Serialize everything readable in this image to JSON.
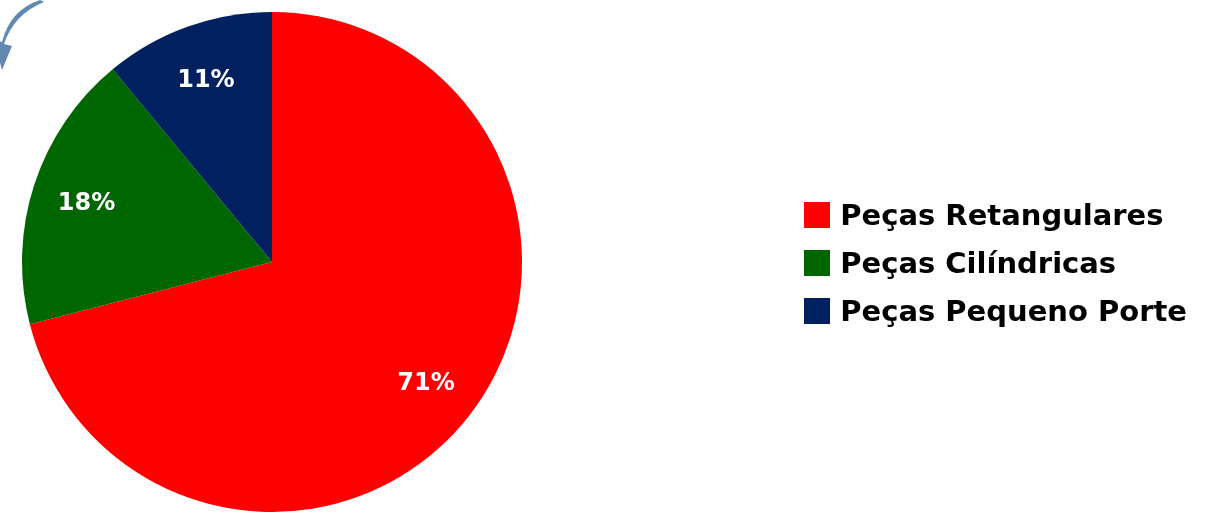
{
  "chart_data": {
    "type": "pie",
    "categories": [
      "Peças Retangulares",
      "Peças Cilíndricas",
      "Peças Pequeno Porte"
    ],
    "values": [
      71,
      18,
      11
    ],
    "colors": [
      "#ff0000",
      "#006600",
      "#002060"
    ],
    "value_labels": [
      "71%",
      "18%",
      "11%"
    ],
    "legend": "right"
  }
}
